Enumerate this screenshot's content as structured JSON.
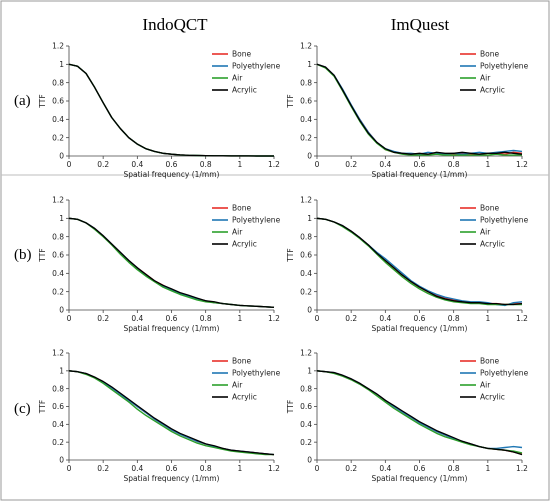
{
  "figure": {
    "column_titles": [
      "IndoQCT",
      "ImQuest"
    ],
    "row_labels": [
      "(a)",
      "(b)",
      "(c)"
    ]
  },
  "chart_data": [
    {
      "type": "line",
      "row": "(a)",
      "column": "IndoQCT",
      "xlabel": "Spatial frequency (1/mm)",
      "ylabel": "TTF",
      "xlim": [
        0,
        1.2
      ],
      "ylim": [
        0,
        1.2
      ],
      "xticks": [
        "0",
        "0.2",
        "0.4",
        "0.6",
        "0.8",
        "1",
        "1.2"
      ],
      "yticks": [
        "0",
        "0.2",
        "0.4",
        "0.6",
        "0.8",
        "1",
        "1.2"
      ],
      "legend_position": "top-right",
      "x": [
        0,
        0.05,
        0.1,
        0.15,
        0.2,
        0.25,
        0.3,
        0.35,
        0.4,
        0.45,
        0.5,
        0.55,
        0.6,
        0.65,
        0.7,
        0.75,
        0.8,
        0.85,
        0.9,
        0.95,
        1.0,
        1.05,
        1.1,
        1.15,
        1.2
      ],
      "series": [
        {
          "name": "Bone",
          "color": "#e8302a",
          "values": [
            1.0,
            0.98,
            0.9,
            0.75,
            0.58,
            0.42,
            0.3,
            0.2,
            0.13,
            0.08,
            0.05,
            0.03,
            0.02,
            0.012,
            0.008,
            0.005,
            0.003,
            0.002,
            0.002,
            0.001,
            0.001,
            0.001,
            0.0,
            0.0,
            0.0
          ]
        },
        {
          "name": "Polyethylene",
          "color": "#1f77b4",
          "values": [
            1.0,
            0.98,
            0.9,
            0.75,
            0.58,
            0.42,
            0.3,
            0.2,
            0.13,
            0.08,
            0.05,
            0.03,
            0.02,
            0.012,
            0.008,
            0.005,
            0.003,
            0.002,
            0.002,
            0.001,
            0.001,
            0.001,
            0.0,
            0.0,
            0.0
          ]
        },
        {
          "name": "Air",
          "color": "#2ca02c",
          "values": [
            1.0,
            0.98,
            0.9,
            0.75,
            0.58,
            0.42,
            0.3,
            0.2,
            0.13,
            0.08,
            0.05,
            0.03,
            0.02,
            0.012,
            0.008,
            0.005,
            0.003,
            0.002,
            0.002,
            0.001,
            0.001,
            0.001,
            0.0,
            0.0,
            0.0
          ]
        },
        {
          "name": "Acrylic",
          "color": "#000000",
          "values": [
            1.0,
            0.98,
            0.9,
            0.75,
            0.58,
            0.42,
            0.3,
            0.2,
            0.13,
            0.08,
            0.05,
            0.03,
            0.02,
            0.012,
            0.008,
            0.005,
            0.003,
            0.002,
            0.002,
            0.001,
            0.001,
            0.001,
            0.0,
            0.0,
            0.0
          ]
        }
      ]
    },
    {
      "type": "line",
      "row": "(a)",
      "column": "ImQuest",
      "xlabel": "Spatial frequency (1/mm)",
      "ylabel": "TTF",
      "xlim": [
        0,
        1.2
      ],
      "ylim": [
        0,
        1.2
      ],
      "xticks": [
        "0",
        "0.2",
        "0.4",
        "0.6",
        "0.8",
        "1",
        "1.2"
      ],
      "yticks": [
        "0",
        "0.2",
        "0.4",
        "0.6",
        "0.8",
        "1",
        "1.2"
      ],
      "legend_position": "top-right",
      "x": [
        0,
        0.05,
        0.1,
        0.15,
        0.2,
        0.25,
        0.3,
        0.35,
        0.4,
        0.45,
        0.5,
        0.55,
        0.6,
        0.65,
        0.7,
        0.75,
        0.8,
        0.85,
        0.9,
        0.95,
        1.0,
        1.05,
        1.1,
        1.15,
        1.2
      ],
      "series": [
        {
          "name": "Bone",
          "color": "#e8302a",
          "values": [
            1.0,
            0.97,
            0.88,
            0.72,
            0.55,
            0.4,
            0.26,
            0.15,
            0.07,
            0.04,
            0.03,
            0.02,
            0.02,
            0.02,
            0.03,
            0.02,
            0.02,
            0.03,
            0.02,
            0.02,
            0.03,
            0.03,
            0.02,
            0.04,
            0.03
          ]
        },
        {
          "name": "Polyethylene",
          "color": "#1f77b4",
          "values": [
            1.0,
            0.97,
            0.88,
            0.73,
            0.56,
            0.4,
            0.26,
            0.15,
            0.08,
            0.05,
            0.03,
            0.03,
            0.02,
            0.04,
            0.03,
            0.02,
            0.03,
            0.02,
            0.03,
            0.04,
            0.03,
            0.04,
            0.05,
            0.06,
            0.05
          ]
        },
        {
          "name": "Air",
          "color": "#2ca02c",
          "values": [
            1.0,
            0.96,
            0.87,
            0.71,
            0.54,
            0.38,
            0.24,
            0.14,
            0.07,
            0.04,
            0.02,
            0.01,
            0.01,
            0.01,
            0.02,
            0.01,
            0.01,
            0.01,
            0.01,
            0.01,
            0.01,
            0.02,
            0.01,
            0.01,
            0.01
          ]
        },
        {
          "name": "Acrylic",
          "color": "#000000",
          "values": [
            1.0,
            0.97,
            0.88,
            0.72,
            0.55,
            0.39,
            0.25,
            0.15,
            0.08,
            0.04,
            0.03,
            0.02,
            0.03,
            0.02,
            0.04,
            0.03,
            0.03,
            0.04,
            0.03,
            0.02,
            0.03,
            0.03,
            0.04,
            0.03,
            0.02
          ]
        }
      ]
    },
    {
      "type": "line",
      "row": "(b)",
      "column": "IndoQCT",
      "xlabel": "Spatial frequency (1/mm)",
      "ylabel": "TTF",
      "xlim": [
        0,
        1.2
      ],
      "ylim": [
        0,
        1.2
      ],
      "xticks": [
        "0",
        "0.2",
        "0.4",
        "0.6",
        "0.8",
        "1",
        "1.2"
      ],
      "yticks": [
        "0",
        "0.2",
        "0.4",
        "0.6",
        "0.8",
        "1",
        "1.2"
      ],
      "legend_position": "top-right",
      "x": [
        0,
        0.05,
        0.1,
        0.15,
        0.2,
        0.25,
        0.3,
        0.35,
        0.4,
        0.45,
        0.5,
        0.55,
        0.6,
        0.65,
        0.7,
        0.75,
        0.8,
        0.85,
        0.9,
        0.95,
        1.0,
        1.05,
        1.1,
        1.15,
        1.2
      ],
      "series": [
        {
          "name": "Bone",
          "color": "#e8302a",
          "values": [
            1.0,
            0.99,
            0.95,
            0.89,
            0.81,
            0.72,
            0.63,
            0.54,
            0.46,
            0.39,
            0.32,
            0.27,
            0.22,
            0.18,
            0.15,
            0.12,
            0.1,
            0.08,
            0.07,
            0.06,
            0.05,
            0.045,
            0.04,
            0.035,
            0.03
          ]
        },
        {
          "name": "Polyethylene",
          "color": "#1f77b4",
          "values": [
            1.0,
            0.99,
            0.95,
            0.89,
            0.81,
            0.72,
            0.63,
            0.54,
            0.46,
            0.38,
            0.32,
            0.26,
            0.22,
            0.18,
            0.15,
            0.12,
            0.1,
            0.08,
            0.07,
            0.06,
            0.05,
            0.045,
            0.04,
            0.035,
            0.03
          ]
        },
        {
          "name": "Air",
          "color": "#2ca02c",
          "values": [
            1.0,
            0.99,
            0.95,
            0.88,
            0.8,
            0.71,
            0.61,
            0.52,
            0.44,
            0.37,
            0.31,
            0.25,
            0.21,
            0.17,
            0.14,
            0.11,
            0.09,
            0.08,
            0.07,
            0.06,
            0.05,
            0.045,
            0.04,
            0.035,
            0.03
          ]
        },
        {
          "name": "Acrylic",
          "color": "#000000",
          "values": [
            1.0,
            0.99,
            0.95,
            0.89,
            0.81,
            0.72,
            0.63,
            0.54,
            0.46,
            0.39,
            0.32,
            0.27,
            0.23,
            0.19,
            0.16,
            0.13,
            0.1,
            0.09,
            0.07,
            0.06,
            0.05,
            0.045,
            0.04,
            0.035,
            0.03
          ]
        }
      ]
    },
    {
      "type": "line",
      "row": "(b)",
      "column": "ImQuest",
      "xlabel": "Spatial frequency (1/mm)",
      "ylabel": "TTF",
      "xlim": [
        0,
        1.2
      ],
      "ylim": [
        0,
        1.2
      ],
      "xticks": [
        "0",
        "0.2",
        "0.4",
        "0.6",
        "0.8",
        "1",
        "1.2"
      ],
      "yticks": [
        "0",
        "0.2",
        "0.4",
        "0.6",
        "0.8",
        "1",
        "1.2"
      ],
      "legend_position": "top-right",
      "x": [
        0,
        0.05,
        0.1,
        0.15,
        0.2,
        0.25,
        0.3,
        0.35,
        0.4,
        0.45,
        0.5,
        0.55,
        0.6,
        0.65,
        0.7,
        0.75,
        0.8,
        0.85,
        0.9,
        0.95,
        1.0,
        1.05,
        1.1,
        1.15,
        1.2
      ],
      "series": [
        {
          "name": "Bone",
          "color": "#e8302a",
          "values": [
            1.0,
            0.99,
            0.96,
            0.92,
            0.86,
            0.79,
            0.71,
            0.62,
            0.53,
            0.45,
            0.38,
            0.31,
            0.25,
            0.2,
            0.16,
            0.13,
            0.11,
            0.09,
            0.08,
            0.08,
            0.07,
            0.07,
            0.06,
            0.07,
            0.07
          ]
        },
        {
          "name": "Polyethylene",
          "color": "#1f77b4",
          "values": [
            1.0,
            0.99,
            0.96,
            0.92,
            0.86,
            0.79,
            0.71,
            0.63,
            0.56,
            0.48,
            0.4,
            0.32,
            0.26,
            0.21,
            0.17,
            0.14,
            0.12,
            0.1,
            0.09,
            0.09,
            0.08,
            0.06,
            0.05,
            0.08,
            0.09
          ]
        },
        {
          "name": "Air",
          "color": "#2ca02c",
          "values": [
            1.0,
            0.99,
            0.96,
            0.91,
            0.85,
            0.78,
            0.7,
            0.61,
            0.52,
            0.44,
            0.36,
            0.29,
            0.23,
            0.18,
            0.14,
            0.11,
            0.09,
            0.08,
            0.07,
            0.07,
            0.06,
            0.06,
            0.06,
            0.06,
            0.06
          ]
        },
        {
          "name": "Acrylic",
          "color": "#000000",
          "values": [
            1.0,
            0.99,
            0.96,
            0.92,
            0.86,
            0.79,
            0.71,
            0.62,
            0.54,
            0.46,
            0.38,
            0.31,
            0.25,
            0.2,
            0.15,
            0.12,
            0.1,
            0.09,
            0.08,
            0.08,
            0.07,
            0.07,
            0.06,
            0.06,
            0.07
          ]
        }
      ]
    },
    {
      "type": "line",
      "row": "(c)",
      "column": "IndoQCT",
      "xlabel": "Spatial frequency (1/mm)",
      "ylabel": "TTF",
      "xlim": [
        0,
        1.2
      ],
      "ylim": [
        0,
        1.2
      ],
      "xticks": [
        "0",
        "0.2",
        "0.4",
        "0.6",
        "0.8",
        "1",
        "1.2"
      ],
      "yticks": [
        "0",
        "0.2",
        "0.4",
        "0.6",
        "0.8",
        "1",
        "1.2"
      ],
      "legend_position": "top-right",
      "x": [
        0,
        0.05,
        0.1,
        0.15,
        0.2,
        0.25,
        0.3,
        0.35,
        0.4,
        0.45,
        0.5,
        0.55,
        0.6,
        0.65,
        0.7,
        0.75,
        0.8,
        0.85,
        0.9,
        0.95,
        1.0,
        1.05,
        1.1,
        1.15,
        1.2
      ],
      "series": [
        {
          "name": "Bone",
          "color": "#e8302a",
          "values": [
            1.0,
            0.99,
            0.97,
            0.93,
            0.87,
            0.81,
            0.74,
            0.67,
            0.6,
            0.53,
            0.46,
            0.4,
            0.34,
            0.29,
            0.25,
            0.21,
            0.18,
            0.15,
            0.13,
            0.11,
            0.1,
            0.09,
            0.08,
            0.07,
            0.06
          ]
        },
        {
          "name": "Polyethylene",
          "color": "#1f77b4",
          "values": [
            1.0,
            0.99,
            0.97,
            0.93,
            0.87,
            0.81,
            0.74,
            0.67,
            0.6,
            0.53,
            0.46,
            0.4,
            0.34,
            0.29,
            0.25,
            0.21,
            0.18,
            0.15,
            0.13,
            0.11,
            0.1,
            0.09,
            0.08,
            0.07,
            0.06
          ]
        },
        {
          "name": "Air",
          "color": "#2ca02c",
          "values": [
            1.0,
            0.99,
            0.96,
            0.92,
            0.86,
            0.79,
            0.72,
            0.65,
            0.57,
            0.5,
            0.44,
            0.38,
            0.32,
            0.27,
            0.23,
            0.19,
            0.16,
            0.14,
            0.12,
            0.1,
            0.09,
            0.08,
            0.07,
            0.06,
            0.06
          ]
        },
        {
          "name": "Acrylic",
          "color": "#000000",
          "values": [
            1.0,
            0.99,
            0.97,
            0.93,
            0.88,
            0.82,
            0.75,
            0.68,
            0.61,
            0.54,
            0.47,
            0.41,
            0.35,
            0.3,
            0.26,
            0.22,
            0.18,
            0.16,
            0.13,
            0.11,
            0.1,
            0.09,
            0.08,
            0.07,
            0.06
          ]
        }
      ]
    },
    {
      "type": "line",
      "row": "(c)",
      "column": "ImQuest",
      "xlabel": "Spatial frequency (1/mm)",
      "ylabel": "TTF",
      "xlim": [
        0,
        1.2
      ],
      "ylim": [
        0,
        1.2
      ],
      "xticks": [
        "0",
        "0.2",
        "0.4",
        "0.6",
        "0.8",
        "1",
        "1.2"
      ],
      "yticks": [
        "0",
        "0.2",
        "0.4",
        "0.6",
        "0.8",
        "1",
        "1.2"
      ],
      "legend_position": "top-right",
      "x": [
        0,
        0.05,
        0.1,
        0.15,
        0.2,
        0.25,
        0.3,
        0.35,
        0.4,
        0.45,
        0.5,
        0.55,
        0.6,
        0.65,
        0.7,
        0.75,
        0.8,
        0.85,
        0.9,
        0.95,
        1.0,
        1.05,
        1.1,
        1.15,
        1.2
      ],
      "series": [
        {
          "name": "Bone",
          "color": "#e8302a",
          "values": [
            1.0,
            0.99,
            0.98,
            0.95,
            0.91,
            0.86,
            0.8,
            0.74,
            0.67,
            0.6,
            0.54,
            0.48,
            0.42,
            0.37,
            0.32,
            0.28,
            0.24,
            0.21,
            0.18,
            0.15,
            0.13,
            0.12,
            0.11,
            0.09,
            0.07
          ]
        },
        {
          "name": "Polyethylene",
          "color": "#1f77b4",
          "values": [
            1.0,
            0.99,
            0.98,
            0.95,
            0.91,
            0.86,
            0.8,
            0.74,
            0.67,
            0.6,
            0.54,
            0.48,
            0.42,
            0.37,
            0.32,
            0.28,
            0.24,
            0.21,
            0.18,
            0.15,
            0.13,
            0.13,
            0.14,
            0.15,
            0.14
          ]
        },
        {
          "name": "Air",
          "color": "#2ca02c",
          "values": [
            1.0,
            0.99,
            0.97,
            0.94,
            0.9,
            0.85,
            0.79,
            0.72,
            0.65,
            0.58,
            0.52,
            0.46,
            0.4,
            0.35,
            0.3,
            0.26,
            0.23,
            0.2,
            0.17,
            0.15,
            0.13,
            0.12,
            0.11,
            0.1,
            0.08
          ]
        },
        {
          "name": "Acrylic",
          "color": "#000000",
          "values": [
            1.0,
            0.99,
            0.98,
            0.95,
            0.91,
            0.86,
            0.8,
            0.74,
            0.67,
            0.61,
            0.55,
            0.49,
            0.43,
            0.38,
            0.33,
            0.29,
            0.25,
            0.21,
            0.18,
            0.15,
            0.13,
            0.12,
            0.11,
            0.09,
            0.06
          ]
        }
      ]
    }
  ]
}
